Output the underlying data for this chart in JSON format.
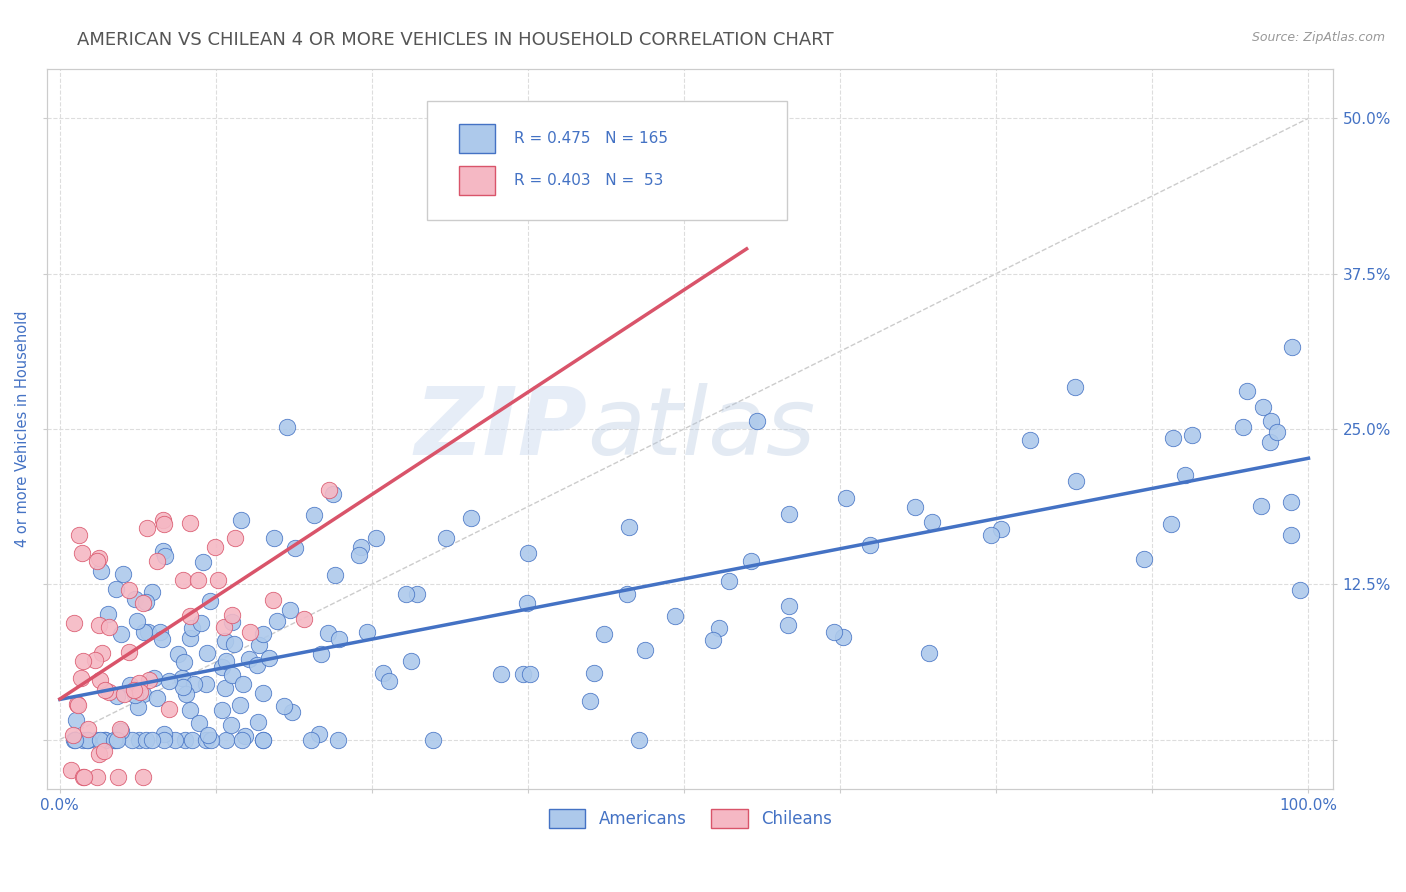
{
  "title": "AMERICAN VS CHILEAN 4 OR MORE VEHICLES IN HOUSEHOLD CORRELATION CHART",
  "source": "Source: ZipAtlas.com",
  "ylabel": "4 or more Vehicles in Household",
  "xlim": [
    -0.01,
    1.02
  ],
  "ylim": [
    -0.04,
    0.54
  ],
  "xticks": [
    0.0,
    0.125,
    0.25,
    0.375,
    0.5,
    0.625,
    0.75,
    0.875,
    1.0
  ],
  "xticklabels": [
    "0.0%",
    "",
    "",
    "",
    "",
    "",
    "",
    "",
    "100.0%"
  ],
  "yticks": [
    0.0,
    0.125,
    0.25,
    0.375,
    0.5
  ],
  "yticklabels": [
    "",
    "12.5%",
    "25.0%",
    "37.5%",
    "50.0%"
  ],
  "american_color": "#adc9eb",
  "chilean_color": "#f5b8c4",
  "american_line_color": "#4472c4",
  "chilean_line_color": "#d9546a",
  "diagonal_color": "#cccccc",
  "R_american": 0.475,
  "N_american": 165,
  "R_chilean": 0.403,
  "N_chilean": 53,
  "legend_labels": [
    "Americans",
    "Chileans"
  ],
  "watermark_zip": "ZIP",
  "watermark_atlas": "atlas",
  "background_color": "#ffffff",
  "title_color": "#555555",
  "title_fontsize": 13,
  "axis_label_color": "#4472c4",
  "tick_color": "#4472c4",
  "grid_color": "#dddddd",
  "american_seed": 42,
  "chilean_seed": 99
}
